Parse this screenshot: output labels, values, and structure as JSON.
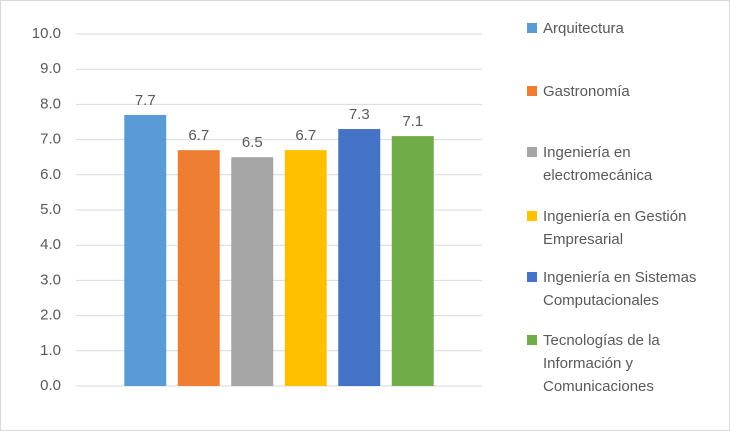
{
  "chart_data": {
    "type": "bar",
    "series": [
      {
        "name": "Arquitectura",
        "color": "#5b9bd5",
        "values": [
          7.7
        ]
      },
      {
        "name": "Gastronomía",
        "color": "#ed7d31",
        "values": [
          6.7
        ]
      },
      {
        "name": "Ingeniería en electromecánica",
        "color": "#a5a5a5",
        "values": [
          6.5
        ]
      },
      {
        "name": "Ingeniería en Gestión Empresarial",
        "color": "#ffc000",
        "values": [
          6.7
        ]
      },
      {
        "name": "Ingeniería en Sistemas Computacionales",
        "color": "#4472c4",
        "values": [
          7.3
        ]
      },
      {
        "name": "Tecnologías de la Información y Comunicaciones",
        "color": "#70ad47",
        "values": [
          7.1
        ]
      }
    ],
    "ylim": [
      0,
      10
    ],
    "yticks": [
      {
        "value": 0,
        "label": "0.0"
      },
      {
        "value": 1,
        "label": "1.0"
      },
      {
        "value": 2,
        "label": "2.0"
      },
      {
        "value": 3,
        "label": "3.0"
      },
      {
        "value": 4,
        "label": "4.0"
      },
      {
        "value": 5,
        "label": "5.0"
      },
      {
        "value": 6,
        "label": "6.0"
      },
      {
        "value": 7,
        "label": "7.0"
      },
      {
        "value": 8,
        "label": "8.0"
      },
      {
        "value": 9,
        "label": "9.0"
      },
      {
        "value": 10,
        "label": "10.0"
      }
    ],
    "grid": true,
    "legend": "right"
  }
}
